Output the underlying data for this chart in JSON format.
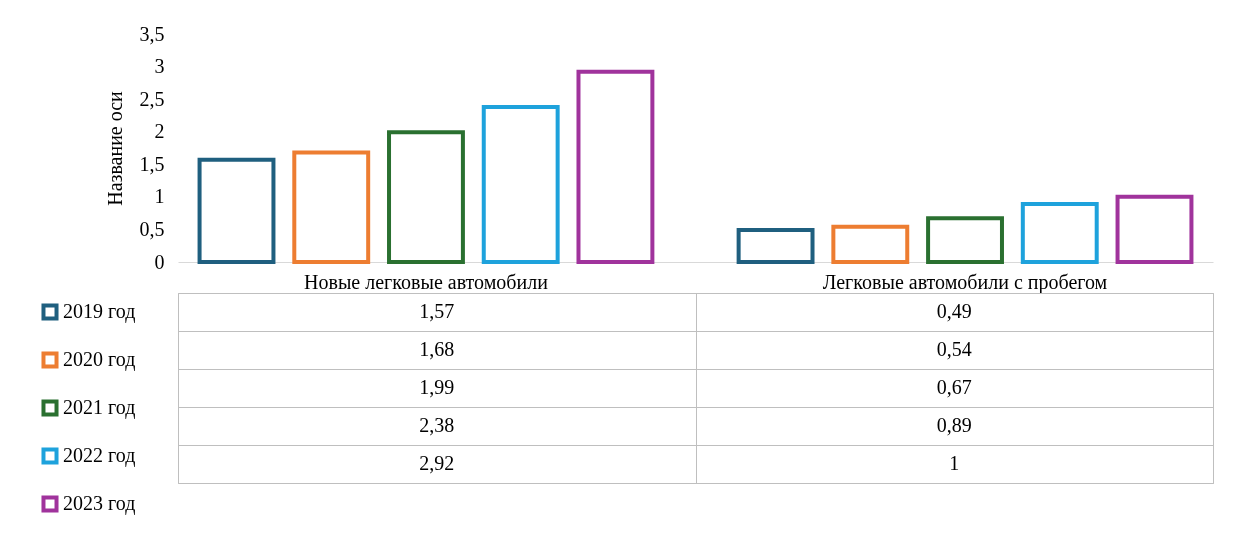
{
  "chart_data": {
    "type": "bar",
    "ylabel": "Название оси",
    "categories": [
      "Новые легковые автомобили",
      "Легковые автомобили с пробегом"
    ],
    "series": [
      {
        "name": "2019 год",
        "color": "#1f5f7f",
        "values": [
          1.57,
          0.49
        ],
        "value_labels": [
          "1,57",
          "0,49"
        ]
      },
      {
        "name": "2020 год",
        "color": "#ed7d31",
        "values": [
          1.68,
          0.54
        ],
        "value_labels": [
          "1,68",
          "0,54"
        ]
      },
      {
        "name": "2021 год",
        "color": "#2a7030",
        "values": [
          1.99,
          0.67
        ],
        "value_labels": [
          "1,99",
          "0,67"
        ]
      },
      {
        "name": "2022 год",
        "color": "#1ea2dc",
        "values": [
          2.38,
          0.89
        ],
        "value_labels": [
          "2,38",
          "0,89"
        ]
      },
      {
        "name": "2023 год",
        "color": "#a0339c",
        "values": [
          2.92,
          1
        ],
        "value_labels": [
          "2,92",
          "1"
        ]
      }
    ],
    "ylim": [
      0,
      3.5
    ],
    "yticks": [
      0,
      {
        "value": 0.5,
        "label": "0,5"
      },
      1,
      {
        "value": 1.5,
        "label": "1,5"
      },
      2,
      {
        "value": 2.5,
        "label": "2,5"
      },
      3,
      {
        "value": 3.5,
        "label": "3,5"
      }
    ],
    "legend": "bottom left"
  }
}
